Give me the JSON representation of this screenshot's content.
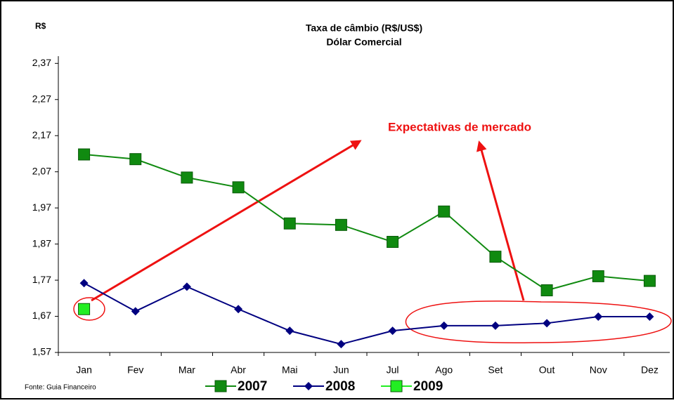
{
  "chart_data": {
    "type": "line",
    "title": "Taxa de câmbio (R$/US$)",
    "subtitle": "Dólar Comercial",
    "y_label": "R$",
    "source": "Fonte: Guia Financeiro",
    "annotation": "Expectativas de mercado",
    "categories": [
      "Jan",
      "Fev",
      "Mar",
      "Abr",
      "Mai",
      "Jun",
      "Jul",
      "Ago",
      "Set",
      "Out",
      "Nov",
      "Dez"
    ],
    "series": [
      {
        "name": "2007",
        "color": "#108a10",
        "marker": "square",
        "values": [
          2.118,
          2.105,
          2.054,
          2.027,
          1.927,
          1.923,
          1.876,
          1.96,
          1.835,
          1.742,
          1.781,
          1.768
        ]
      },
      {
        "name": "2008",
        "color": "#000080",
        "marker": "diamond",
        "values": [
          1.762,
          1.684,
          1.752,
          1.69,
          1.63,
          1.593,
          1.63,
          1.644,
          1.644,
          1.651,
          1.669,
          1.669
        ]
      },
      {
        "name": "2009",
        "color": "#22ee22",
        "marker": "square",
        "values": [
          1.69,
          null,
          null,
          null,
          null,
          null,
          null,
          null,
          null,
          null,
          null,
          null
        ]
      }
    ],
    "ylim": [
      1.57,
      2.39
    ],
    "yticks": [
      {
        "value": 1.57,
        "label": "1,57"
      },
      {
        "value": 1.67,
        "label": "1,67"
      },
      {
        "value": 1.77,
        "label": "1,77"
      },
      {
        "value": 1.87,
        "label": "1,87"
      },
      {
        "value": 1.97,
        "label": "1,97"
      },
      {
        "value": 2.07,
        "label": "2,07"
      },
      {
        "value": 2.17,
        "label": "2,17"
      },
      {
        "value": 2.27,
        "label": "2,27"
      },
      {
        "value": 2.37,
        "label": "2,37"
      }
    ],
    "legend": "bottom"
  }
}
